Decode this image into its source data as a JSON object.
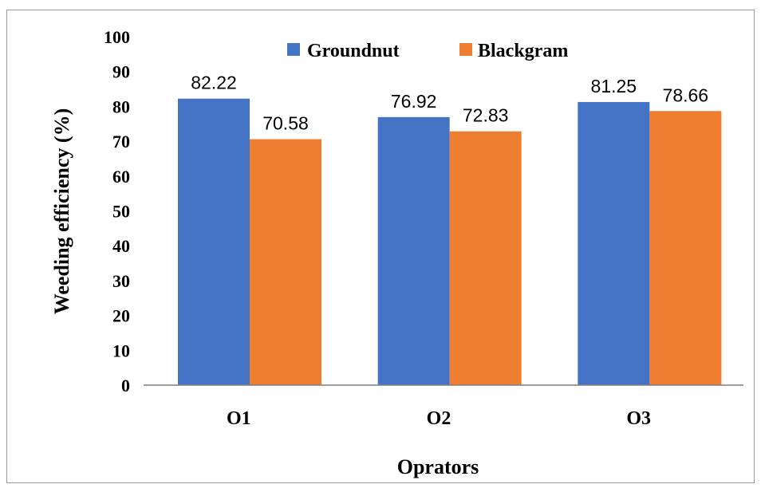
{
  "chart_data": {
    "type": "bar",
    "categories": [
      "O1",
      "O2",
      "O3"
    ],
    "series": [
      {
        "name": "Groundnut",
        "color": "#4472c4",
        "values": [
          82.22,
          76.92,
          81.25
        ]
      },
      {
        "name": "Blackgram",
        "color": "#ed7d31",
        "values": [
          70.58,
          72.83,
          78.66
        ]
      }
    ],
    "xlabel": "Oprators",
    "ylabel": "Weeding efficiency (%)",
    "ylim": [
      0,
      100
    ],
    "yticks": [
      "0",
      "10",
      "20",
      "30",
      "40",
      "50",
      "60",
      "70",
      "80",
      "90",
      "100"
    ],
    "data_labels": [
      [
        "82.22",
        "76.92",
        "81.25"
      ],
      [
        "70.58",
        "72.83",
        "78.66"
      ]
    ],
    "legend_position": "top",
    "grid": false
  }
}
